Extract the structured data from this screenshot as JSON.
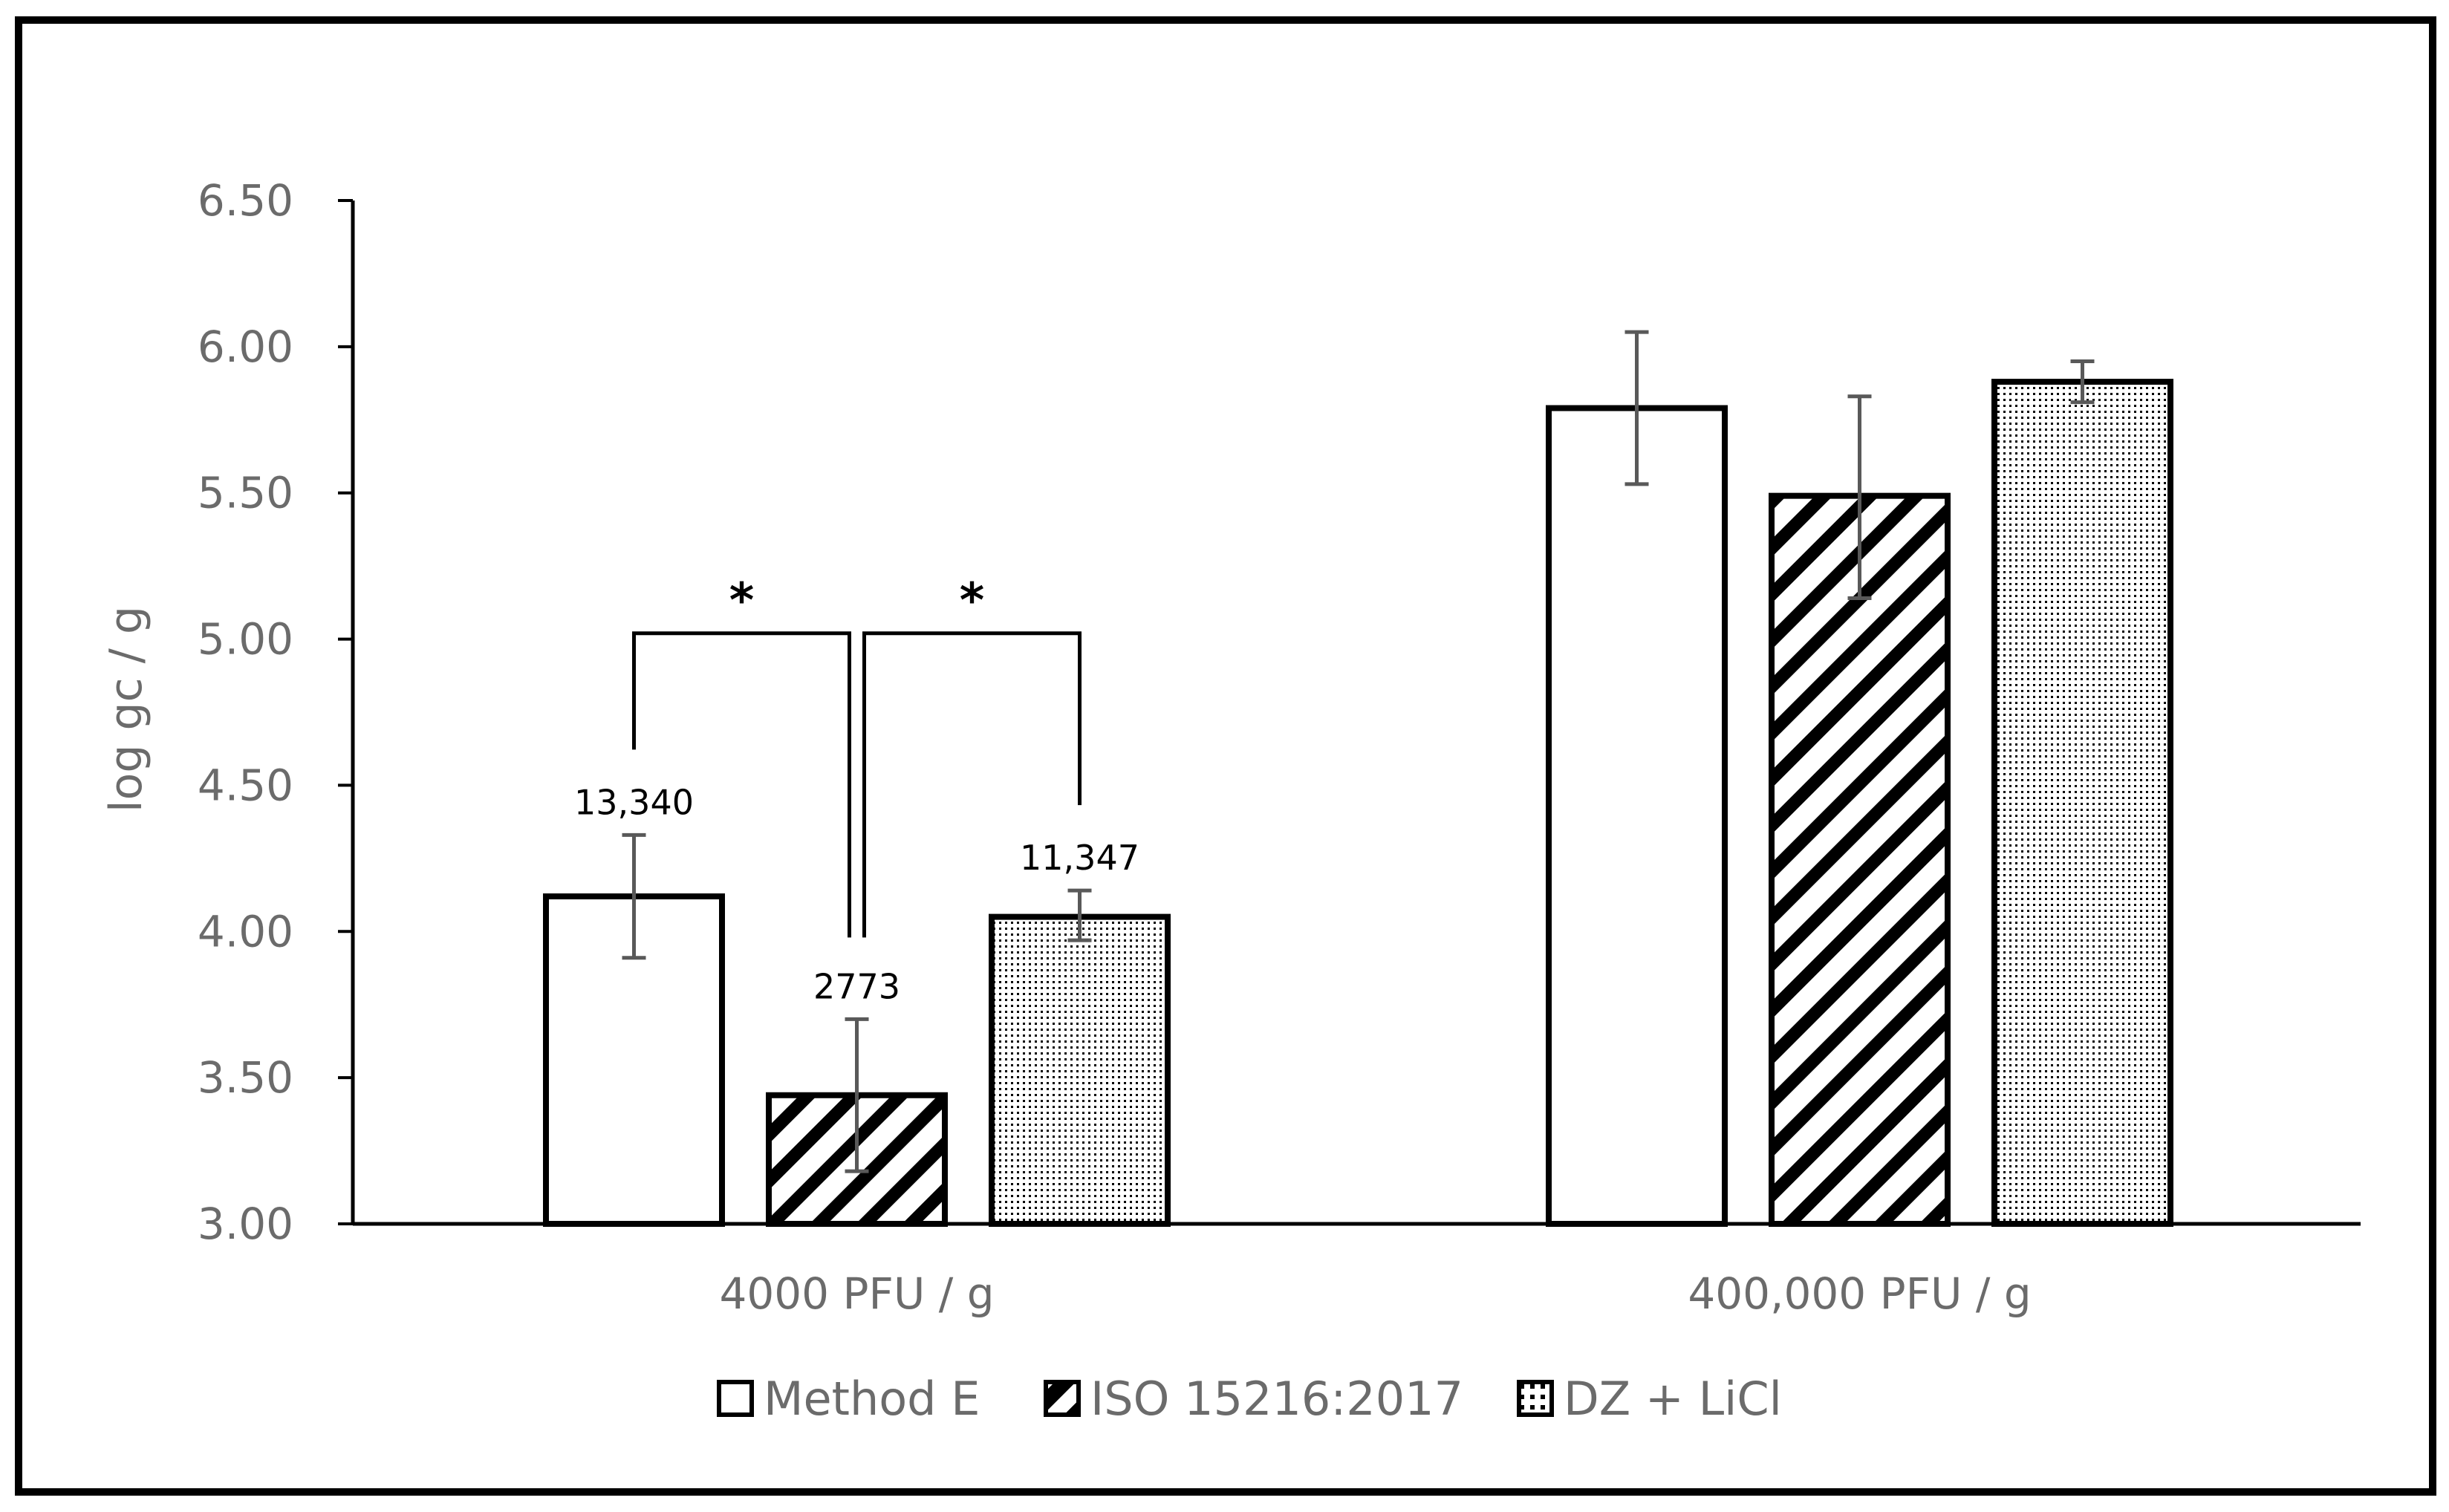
{
  "chart_data": {
    "type": "bar",
    "title": "",
    "xlabel": "",
    "ylabel": "log gc / g",
    "ylim": [
      3.0,
      6.5
    ],
    "yticks": [
      "3.00",
      "3.50",
      "4.00",
      "4.50",
      "5.00",
      "5.50",
      "6.00",
      "6.50"
    ],
    "categories": [
      "4000 PFU / g",
      "400,000 PFU / g"
    ],
    "series": [
      {
        "name": "Method E",
        "pattern": "empty",
        "values": [
          4.12,
          5.79
        ],
        "error_low": [
          3.91,
          5.53
        ],
        "error_high": [
          4.33,
          6.05
        ],
        "data_labels": [
          "13,340",
          ""
        ]
      },
      {
        "name": "ISO 15216:2017",
        "pattern": "diagonal",
        "values": [
          3.44,
          5.49
        ],
        "error_low": [
          3.18,
          5.14
        ],
        "error_high": [
          3.7,
          5.83
        ],
        "data_labels": [
          "2773",
          ""
        ]
      },
      {
        "name": "DZ + LiCl",
        "pattern": "dotted",
        "values": [
          4.05,
          5.88
        ],
        "error_low": [
          3.97,
          5.81
        ],
        "error_high": [
          4.14,
          5.95
        ],
        "data_labels": [
          "11,347",
          ""
        ]
      }
    ],
    "significance": [
      {
        "category": 0,
        "from_series": 0,
        "to_series": 1,
        "bracket_y": 5.02,
        "label": "*"
      },
      {
        "category": 0,
        "from_series": 1,
        "to_series": 2,
        "bracket_y": 5.02,
        "label": "*"
      }
    ],
    "grid": false,
    "legend_position": "bottom",
    "colors": {
      "bar_edge": "#000000",
      "bar_fill": "#ffffff",
      "error_bar": "#595959",
      "axis_text": "#6b6b6b"
    }
  }
}
